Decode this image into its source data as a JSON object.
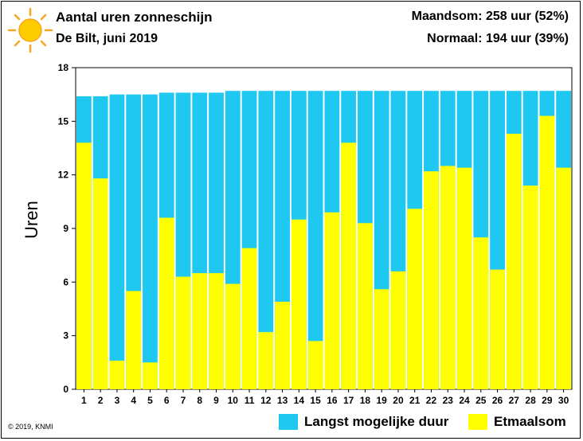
{
  "header": {
    "title": "Aantal uren zonneschijn",
    "subtitle": "De Bilt, juni 2019",
    "stat_month": "Maandsom: 258 uur (52%)",
    "stat_normal": "Normaal: 194 uur (39%)"
  },
  "footer": {
    "copyright": "© 2019, KNMI"
  },
  "colors": {
    "max_duration": "#1ec8f0",
    "daily_sum": "#ffff00",
    "sun": "#f5a623"
  },
  "icons": {
    "logo": "sun-icon"
  },
  "chart_data": {
    "type": "bar",
    "categories": [
      "1",
      "2",
      "3",
      "4",
      "5",
      "6",
      "7",
      "8",
      "9",
      "10",
      "11",
      "12",
      "13",
      "14",
      "15",
      "16",
      "17",
      "18",
      "19",
      "20",
      "21",
      "22",
      "23",
      "24",
      "25",
      "26",
      "27",
      "28",
      "29",
      "30"
    ],
    "series": [
      {
        "name": "Langst mogelijke duur",
        "values": [
          16.4,
          16.4,
          16.5,
          16.5,
          16.5,
          16.6,
          16.6,
          16.6,
          16.6,
          16.7,
          16.7,
          16.7,
          16.7,
          16.7,
          16.7,
          16.7,
          16.7,
          16.7,
          16.7,
          16.7,
          16.7,
          16.7,
          16.7,
          16.7,
          16.7,
          16.7,
          16.7,
          16.7,
          16.7,
          16.7
        ]
      },
      {
        "name": "Etmaalsom",
        "values": [
          13.8,
          11.8,
          1.6,
          5.5,
          1.5,
          9.6,
          6.3,
          6.5,
          6.5,
          5.9,
          7.9,
          3.2,
          4.9,
          9.5,
          2.7,
          9.9,
          13.8,
          9.3,
          5.6,
          6.6,
          10.1,
          12.2,
          12.5,
          12.4,
          8.5,
          6.7,
          14.3,
          11.4,
          15.3,
          12.4
        ]
      }
    ],
    "xlabel": "",
    "ylabel": "Uren",
    "ylim": [
      0,
      18
    ],
    "yticks": [
      "0",
      "3",
      "6",
      "9",
      "12",
      "15",
      "18"
    ],
    "legend_position": "bottom-right",
    "grid": false
  }
}
